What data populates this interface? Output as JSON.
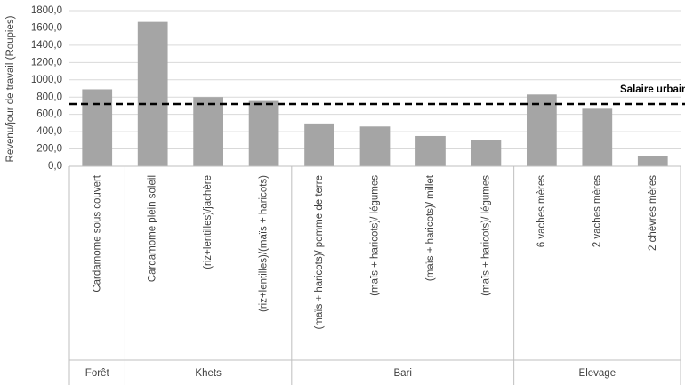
{
  "chart_data": {
    "type": "bar",
    "y_label": "Revenu/jour de travail (Roupies)",
    "categories": [
      "Cardamome sous couvert",
      "Cardamome plein soleil",
      "(riz+lentilles)/jachère",
      "(riz+lentilles)/(maïs + haricots)",
      "(maïs + haricots)/ pomme de terre",
      "(maïs + haricots)/ légumes",
      "(maïs + haricots)/ millet",
      "(maïs + haricots)/ légumes",
      "6 vaches mères",
      "2 vaches mères",
      "2 chèvres mères"
    ],
    "groups": [
      "Forêt",
      "Khets",
      "Khets",
      "Khets",
      "Bari",
      "Bari",
      "Bari",
      "Bari",
      "Elevage",
      "Elevage",
      "Elevage"
    ],
    "values": [
      890,
      1670,
      800,
      755,
      495,
      460,
      350,
      300,
      830,
      665,
      120
    ],
    "color": "#a5a5a5",
    "ylim": [
      0,
      1800
    ],
    "yticks": [
      {
        "value": 0,
        "label": "0,0"
      },
      {
        "value": 200,
        "label": "200,0"
      },
      {
        "value": 400,
        "label": "400,0"
      },
      {
        "value": 600,
        "label": "600,0"
      },
      {
        "value": 800,
        "label": "800,0"
      },
      {
        "value": 1000,
        "label": "1000,0"
      },
      {
        "value": 1200,
        "label": "1200,0"
      },
      {
        "value": 1400,
        "label": "1400,0"
      },
      {
        "value": 1600,
        "label": "1600,0"
      },
      {
        "value": 1800,
        "label": "1800,0"
      }
    ],
    "grid": true,
    "reference_line": {
      "value": 720,
      "label": "Salaire urbain"
    }
  }
}
